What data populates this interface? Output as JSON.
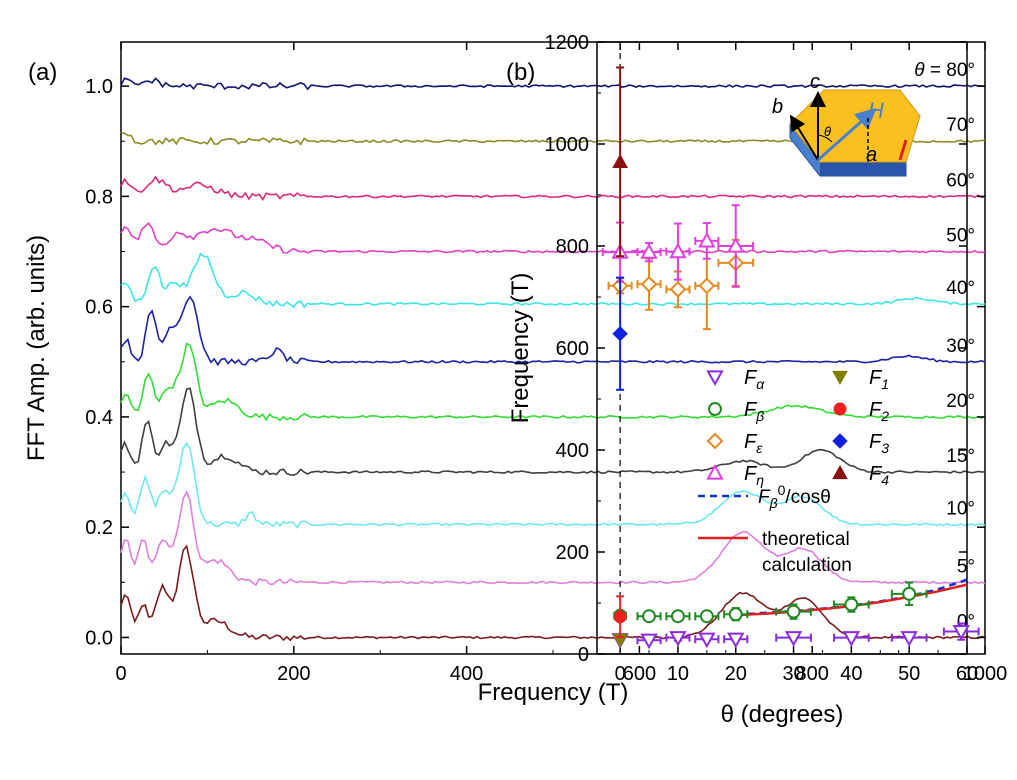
{
  "figure": {
    "panel_a_label": "(a)",
    "panel_b_label": "(b)"
  },
  "chart_data": [
    {
      "type": "line",
      "panel": "(a)",
      "xlabel": "Frequency (T)",
      "ylabel": "FFT Amp. (arb. units)",
      "xlim": [
        0,
        1000
      ],
      "ylim": [
        -0.03,
        1.08
      ],
      "xticks": [
        "0",
        "200",
        "400",
        "600",
        "800",
        "1000"
      ],
      "yticks": [
        "0.0",
        "0.2",
        "0.4",
        "0.6",
        "0.8",
        "1.0"
      ],
      "xtick_values": [
        0,
        200,
        400,
        600,
        800,
        1000
      ],
      "ytick_values": [
        0.0,
        0.2,
        0.4,
        0.6,
        0.8,
        1.0
      ],
      "theta_prefix": "θ = ",
      "series": [
        {
          "label": "0°",
          "offset": 0.0,
          "color": "#7b1c1c",
          "peaks": [
            [
              5,
              0.08,
              6
            ],
            [
              25,
              0.06,
              5
            ],
            [
              48,
              0.09,
              8
            ],
            [
              75,
              0.16,
              9
            ],
            [
              110,
              0.03,
              15
            ],
            [
              720,
              0.08,
              25
            ],
            [
              790,
              0.07,
              22
            ]
          ]
        },
        {
          "label": "5°",
          "offset": 0.1,
          "color": "#e07fdc",
          "peaks": [
            [
              5,
              0.08,
              6
            ],
            [
              25,
              0.08,
              5
            ],
            [
              48,
              0.08,
              8
            ],
            [
              75,
              0.16,
              9
            ],
            [
              110,
              0.04,
              15
            ],
            [
              720,
              0.09,
              25
            ],
            [
              790,
              0.06,
              22
            ]
          ]
        },
        {
          "label": "10°",
          "offset": 0.205,
          "color": "#6fe8f0",
          "peaks": [
            [
              5,
              0.06,
              6
            ],
            [
              28,
              0.08,
              6
            ],
            [
              50,
              0.06,
              8
            ],
            [
              76,
              0.15,
              9
            ],
            [
              150,
              0.02,
              6
            ],
            [
              720,
              0.06,
              25
            ],
            [
              790,
              0.05,
              22
            ]
          ]
        },
        {
          "label": "15°",
          "offset": 0.3,
          "color": "#404040",
          "peaks": [
            [
              5,
              0.05,
              6
            ],
            [
              30,
              0.09,
              6
            ],
            [
              52,
              0.05,
              8
            ],
            [
              78,
              0.15,
              9
            ],
            [
              120,
              0.03,
              15
            ],
            [
              720,
              0.02,
              25
            ],
            [
              810,
              0.04,
              22
            ]
          ]
        },
        {
          "label": "20°",
          "offset": 0.4,
          "color": "#33dd33",
          "peaks": [
            [
              5,
              0.04,
              6
            ],
            [
              32,
              0.08,
              6
            ],
            [
              55,
              0.05,
              8
            ],
            [
              78,
              0.13,
              9
            ],
            [
              120,
              0.03,
              15
            ],
            [
              780,
              0.02,
              30
            ]
          ]
        },
        {
          "label": "30°",
          "offset": 0.5,
          "color": "#1c22a8",
          "peaks": [
            [
              5,
              0.04,
              6
            ],
            [
              35,
              0.09,
              6
            ],
            [
              58,
              0.06,
              8
            ],
            [
              80,
              0.12,
              9
            ],
            [
              180,
              0.02,
              8
            ],
            [
              910,
              0.01,
              20
            ]
          ]
        },
        {
          "label": "40°",
          "offset": 0.605,
          "color": "#3ee6e6",
          "peaks": [
            [
              5,
              0.04,
              6
            ],
            [
              38,
              0.07,
              7
            ],
            [
              62,
              0.04,
              8
            ],
            [
              95,
              0.09,
              12
            ],
            [
              140,
              0.02,
              15
            ],
            [
              920,
              0.01,
              20
            ]
          ]
        },
        {
          "label": "50°",
          "offset": 0.7,
          "color": "#e040c8",
          "peaks": [
            [
              5,
              0.05,
              6
            ],
            [
              30,
              0.05,
              8
            ],
            [
              65,
              0.03,
              10
            ],
            [
              105,
              0.04,
              20
            ],
            [
              150,
              0.02,
              20
            ]
          ]
        },
        {
          "label": "60°",
          "offset": 0.8,
          "color": "#dd2a7e",
          "peaks": [
            [
              5,
              0.03,
              6
            ],
            [
              40,
              0.03,
              12
            ],
            [
              90,
              0.02,
              20
            ]
          ]
        },
        {
          "label": "70°",
          "offset": 0.9,
          "color": "#8c8c22",
          "peaks": [
            [
              5,
              0.02,
              5
            ]
          ]
        },
        {
          "label": "80°",
          "offset": 1.0,
          "color": "#141475",
          "peaks": [
            [
              5,
              0.01,
              5
            ],
            [
              35,
              0.01,
              10
            ]
          ]
        }
      ]
    },
    {
      "type": "scatter",
      "panel": "(b)",
      "xlabel": "θ (degrees)",
      "ylabel": "Frequency (T)",
      "xlim": [
        -4,
        60
      ],
      "ylim": [
        0,
        1200
      ],
      "xticks": [
        "0",
        "10",
        "20",
        "30",
        "40",
        "50",
        "60"
      ],
      "yticks": [
        "0",
        "200",
        "400",
        "600",
        "800",
        "1000",
        "1200"
      ],
      "xtick_values": [
        0,
        10,
        20,
        30,
        40,
        50,
        60
      ],
      "ytick_values": [
        0,
        200,
        400,
        600,
        800,
        1000,
        1200
      ],
      "legend_position": "right",
      "series": [
        {
          "name": "α",
          "marker": "triangle-down-open",
          "color": "#8a2be2",
          "points": [
            [
              0,
              28,
              0,
              0
            ],
            [
              5,
              27,
              2,
              0
            ],
            [
              10,
              32,
              2,
              6
            ],
            [
              15,
              29,
              2,
              0
            ],
            [
              20,
              29,
              2,
              0
            ],
            [
              30,
              32,
              3,
              0
            ],
            [
              40,
              32,
              3,
              0
            ],
            [
              50,
              32,
              3,
              0
            ],
            [
              59,
              44,
              3,
              16
            ]
          ]
        },
        {
          "name": "β",
          "marker": "circle-open",
          "color": "#1f8a1f",
          "points": [
            [
              0,
              75,
              1,
              0
            ],
            [
              5,
              74,
              2,
              8
            ],
            [
              10,
              74,
              2,
              8
            ],
            [
              15,
              74,
              2,
              8
            ],
            [
              20,
              78,
              2,
              12
            ],
            [
              30,
              83,
              3,
              14
            ],
            [
              40,
              97,
              3,
              14
            ],
            [
              50,
              118,
              3,
              22
            ]
          ]
        },
        {
          "name": "ε",
          "marker": "diamond-open",
          "color": "#e58a1f",
          "points": [
            [
              0,
              722,
              2,
              15
            ],
            [
              5,
              725,
              2,
              50
            ],
            [
              10,
              715,
              2,
              35
            ],
            [
              15,
              722,
              2,
              85
            ],
            [
              20,
              767,
              3,
              45
            ]
          ]
        },
        {
          "name": "η",
          "marker": "triangle-up-open",
          "color": "#e040e0",
          "points": [
            [
              0,
              788,
              3,
              58
            ],
            [
              5,
              788,
              2,
              18
            ],
            [
              10,
              789,
              2,
              55
            ],
            [
              15,
              810,
              2,
              35
            ],
            [
              20,
              800,
              3,
              80
            ]
          ]
        },
        {
          "name": "1",
          "marker": "triangle-down-filled",
          "color": "#808000",
          "points": [
            [
              0,
              28,
              0,
              0
            ]
          ]
        },
        {
          "name": "2",
          "marker": "circle-filled",
          "color": "#ee2020",
          "points": [
            [
              0,
              73,
              0,
              40
            ]
          ]
        },
        {
          "name": "3",
          "marker": "diamond-filled",
          "color": "#1020e0",
          "points": [
            [
              0,
              628,
              0,
              110
            ]
          ]
        },
        {
          "name": "4",
          "marker": "triangle-up-filled",
          "color": "#8b1010",
          "points": [
            [
              0,
              965,
              0,
              185
            ]
          ]
        }
      ],
      "curves": [
        {
          "legend": "F",
          "legend_sub": "β",
          "legend_sup": "0",
          "legend_tail": "/cosθ",
          "style": "dashed",
          "color": "#1030d0",
          "F0": 73
        },
        {
          "legend_lines": [
            "theoretical",
            "calculation"
          ],
          "style": "solid",
          "color": "#e02020",
          "points": [
            [
              20,
              76
            ],
            [
              25,
              79
            ],
            [
              30,
              83
            ],
            [
              35,
              88
            ],
            [
              40,
              94
            ],
            [
              45,
              102
            ],
            [
              50,
              112
            ],
            [
              55,
              123
            ],
            [
              60,
              136
            ]
          ]
        }
      ],
      "vline_x": 0,
      "inset": {
        "labels": [
          "c",
          "b",
          "H",
          "a",
          "θ"
        ]
      }
    }
  ]
}
